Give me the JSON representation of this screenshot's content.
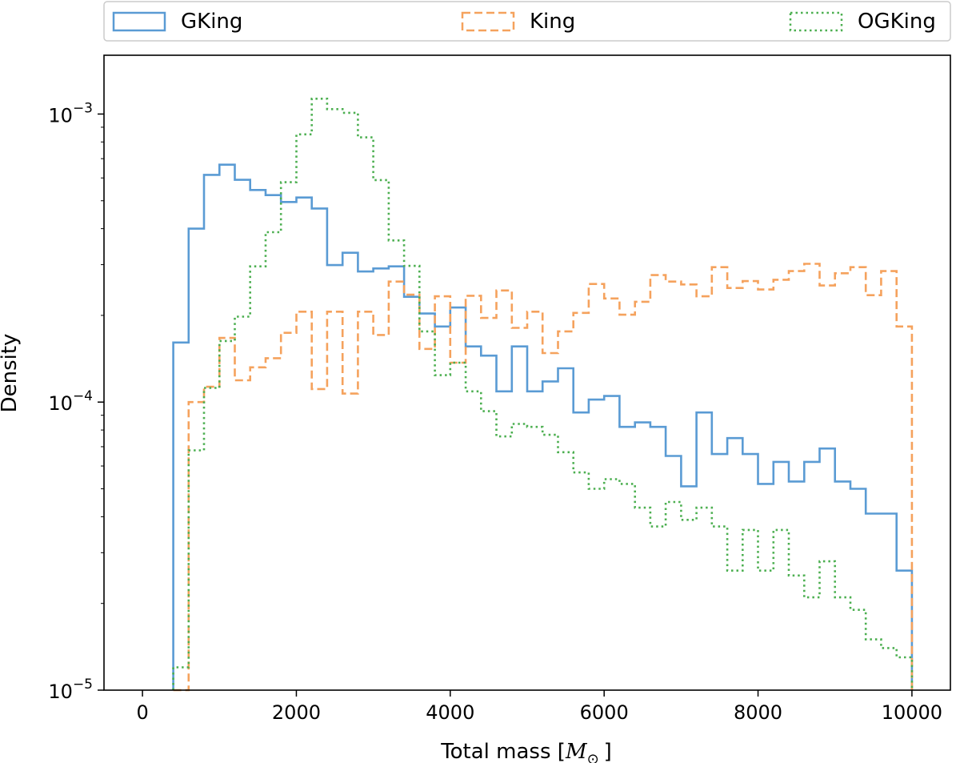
{
  "chart_data": {
    "type": "step-histogram",
    "xlabel": "Total mass [",
    "xlabel_symbol": "M",
    "xlabel_subscript": "⊙",
    "xlabel_close": "]",
    "ylabel": "Density",
    "xlim": [
      -500,
      10500
    ],
    "ylim": [
      1e-05,
      0.0016
    ],
    "yscale": "log",
    "grid": false,
    "legend_placement": "top, outside plot, 3 columns",
    "x_ticks": [
      0,
      2000,
      4000,
      6000,
      8000,
      10000
    ],
    "x_tick_labels": [
      "0",
      "2000",
      "4000",
      "6000",
      "8000",
      "10000"
    ],
    "y_ticks": [
      {
        "value": 1e-05,
        "base": "10",
        "exponent": "−5"
      },
      {
        "value": 0.0001,
        "base": "10",
        "exponent": "−4"
      },
      {
        "value": 0.001,
        "base": "10",
        "exponent": "−3"
      }
    ],
    "bin_edges": [
      400,
      600,
      800,
      1000,
      1200,
      1400,
      1600,
      1800,
      2000,
      2200,
      2400,
      2600,
      2800,
      3000,
      3200,
      3400,
      3600,
      3800,
      4000,
      4200,
      4400,
      4600,
      4800,
      5000,
      5200,
      5400,
      5600,
      5800,
      6000,
      6200,
      6400,
      6600,
      6800,
      7000,
      7200,
      7400,
      7600,
      7800,
      8000,
      8200,
      8400,
      8600,
      8800,
      9000,
      9200,
      9400,
      9600,
      9800,
      10000
    ],
    "series": [
      {
        "name": "GKing",
        "color": "#5a9bd4",
        "linestyle": "solid",
        "values": [
          0.000161,
          0.0004,
          0.000615,
          0.000667,
          0.000591,
          0.000545,
          0.000523,
          0.000495,
          0.000513,
          0.00047,
          0.000299,
          0.00033,
          0.000284,
          0.000291,
          0.000296,
          0.000232,
          0.000203,
          0.000183,
          0.000213,
          0.000156,
          0.000145,
          0.000109,
          0.000156,
          0.000109,
          0.000118,
          0.000131,
          9.2e-05,
          0.000102,
          0.000105,
          8.2e-05,
          8.5e-05,
          8.2e-05,
          6.5e-05,
          5.1e-05,
          9.2e-05,
          6.6e-05,
          7.5e-05,
          6.6e-05,
          5.2e-05,
          6.2e-05,
          5.3e-05,
          6.2e-05,
          6.9e-05,
          5.3e-05,
          5e-05,
          4.1e-05,
          4.1e-05,
          2.6e-05
        ]
      },
      {
        "name": "King",
        "color": "#f5a25d",
        "linestyle": "dashed",
        "values": [
          1e-05,
          0.0001,
          0.000113,
          0.000167,
          0.000119,
          0.000132,
          0.000142,
          0.000174,
          0.000206,
          0.000111,
          0.000206,
          0.000107,
          0.000206,
          0.000171,
          0.000262,
          0.000236,
          0.000153,
          0.000233,
          0.000137,
          0.000234,
          0.000196,
          0.000244,
          0.000181,
          0.000206,
          0.000148,
          0.000176,
          0.000204,
          0.000257,
          0.000229,
          0.000201,
          0.000223,
          0.000276,
          0.000262,
          0.000256,
          0.000233,
          0.000294,
          0.000249,
          0.000263,
          0.000246,
          0.000266,
          0.000285,
          0.000302,
          0.000254,
          0.00028,
          0.000294,
          0.000235,
          0.000285,
          0.000183
        ]
      },
      {
        "name": "OGKing",
        "color": "#4caf50",
        "linestyle": "dotted",
        "values": [
          1.2e-05,
          6.8e-05,
          0.000112,
          0.000163,
          0.000198,
          0.000296,
          0.000389,
          0.00058,
          0.00085,
          0.00113,
          0.00104,
          0.00101,
          0.00083,
          0.00059,
          0.000364,
          0.000297,
          0.000176,
          0.000124,
          0.000137,
          0.000109,
          9.3e-05,
          7.6e-05,
          8.4e-05,
          8.2e-05,
          7.7e-05,
          6.7e-05,
          5.7e-05,
          5e-05,
          5.4e-05,
          5.2e-05,
          4.3e-05,
          3.7e-05,
          4.5e-05,
          3.9e-05,
          4.3e-05,
          3.7e-05,
          2.6e-05,
          3.6e-05,
          2.6e-05,
          3.6e-05,
          2.5e-05,
          2.1e-05,
          2.8e-05,
          2.1e-05,
          1.9e-05,
          1.5e-05,
          1.4e-05,
          1.3e-05
        ]
      }
    ]
  }
}
